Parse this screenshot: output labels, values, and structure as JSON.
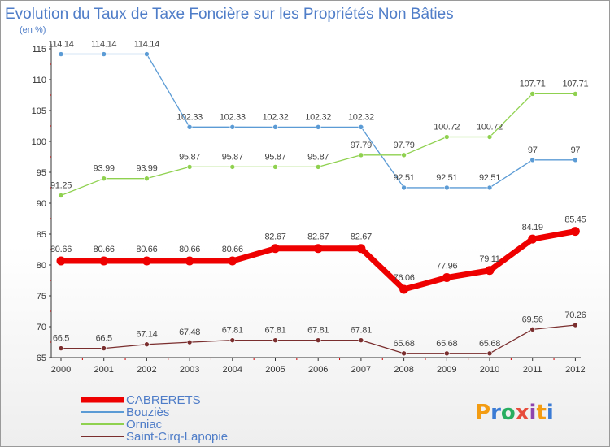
{
  "chart_data": {
    "type": "line",
    "title": "Evolution du Taux de Taxe Foncière sur les Propriétés Non Bâties",
    "subtitle": "(en %)",
    "categories": [
      "2000",
      "2001",
      "2002",
      "2003",
      "2004",
      "2005",
      "2006",
      "2007",
      "2008",
      "2009",
      "2010",
      "2011",
      "2012"
    ],
    "ylim": [
      65,
      115
    ],
    "yticks": [
      65,
      70,
      75,
      80,
      85,
      90,
      95,
      100,
      105,
      110,
      115
    ],
    "grid": false,
    "legend_position": "bottom-left",
    "series": [
      {
        "name": "CABRERETS",
        "color": "#ee0000",
        "values": [
          80.66,
          80.66,
          80.66,
          80.66,
          80.66,
          82.67,
          82.67,
          82.67,
          76.06,
          77.96,
          79.11,
          84.19,
          85.45
        ],
        "labels": [
          "80.66",
          "80.66",
          "80.66",
          "80.66",
          "80.66",
          "82.67",
          "82.67",
          "82.67",
          "76.06",
          "77.96",
          "79.11",
          "84.19",
          "85.45"
        ]
      },
      {
        "name": "Bouziès",
        "color": "#5b9bd5",
        "values": [
          114.14,
          114.14,
          114.14,
          102.33,
          102.33,
          102.32,
          102.32,
          102.32,
          92.51,
          92.51,
          92.51,
          97,
          97
        ],
        "labels": [
          "114.14",
          "114.14",
          "114.14",
          "102.33",
          "102.33",
          "102.32",
          "102.32",
          "102.32",
          "92.51",
          "92.51",
          "92.51",
          "97",
          "97"
        ]
      },
      {
        "name": "Orniac",
        "color": "#8fd14f",
        "values": [
          91.25,
          93.99,
          93.99,
          95.87,
          95.87,
          95.87,
          95.87,
          97.79,
          97.79,
          100.72,
          100.72,
          107.71,
          107.71
        ],
        "labels": [
          "91.25",
          "93.99",
          "93.99",
          "95.87",
          "95.87",
          "95.87",
          "95.87",
          "97.79",
          "97.79",
          "100.72",
          "100.72",
          "107.71",
          "107.71"
        ]
      },
      {
        "name": "Saint-Cirq-Lapopie",
        "color": "#7a2e2e",
        "values": [
          66.5,
          66.5,
          67.14,
          67.48,
          67.81,
          67.81,
          67.81,
          67.81,
          65.68,
          65.68,
          65.68,
          69.56,
          70.26
        ],
        "labels": [
          "66.5",
          "66.5",
          "67.14",
          "67.48",
          "67.81",
          "67.81",
          "67.81",
          "67.81",
          "65.68",
          "65.68",
          "65.68",
          "69.56",
          "70.26"
        ]
      }
    ]
  },
  "logo": {
    "text": "Proxiti"
  }
}
